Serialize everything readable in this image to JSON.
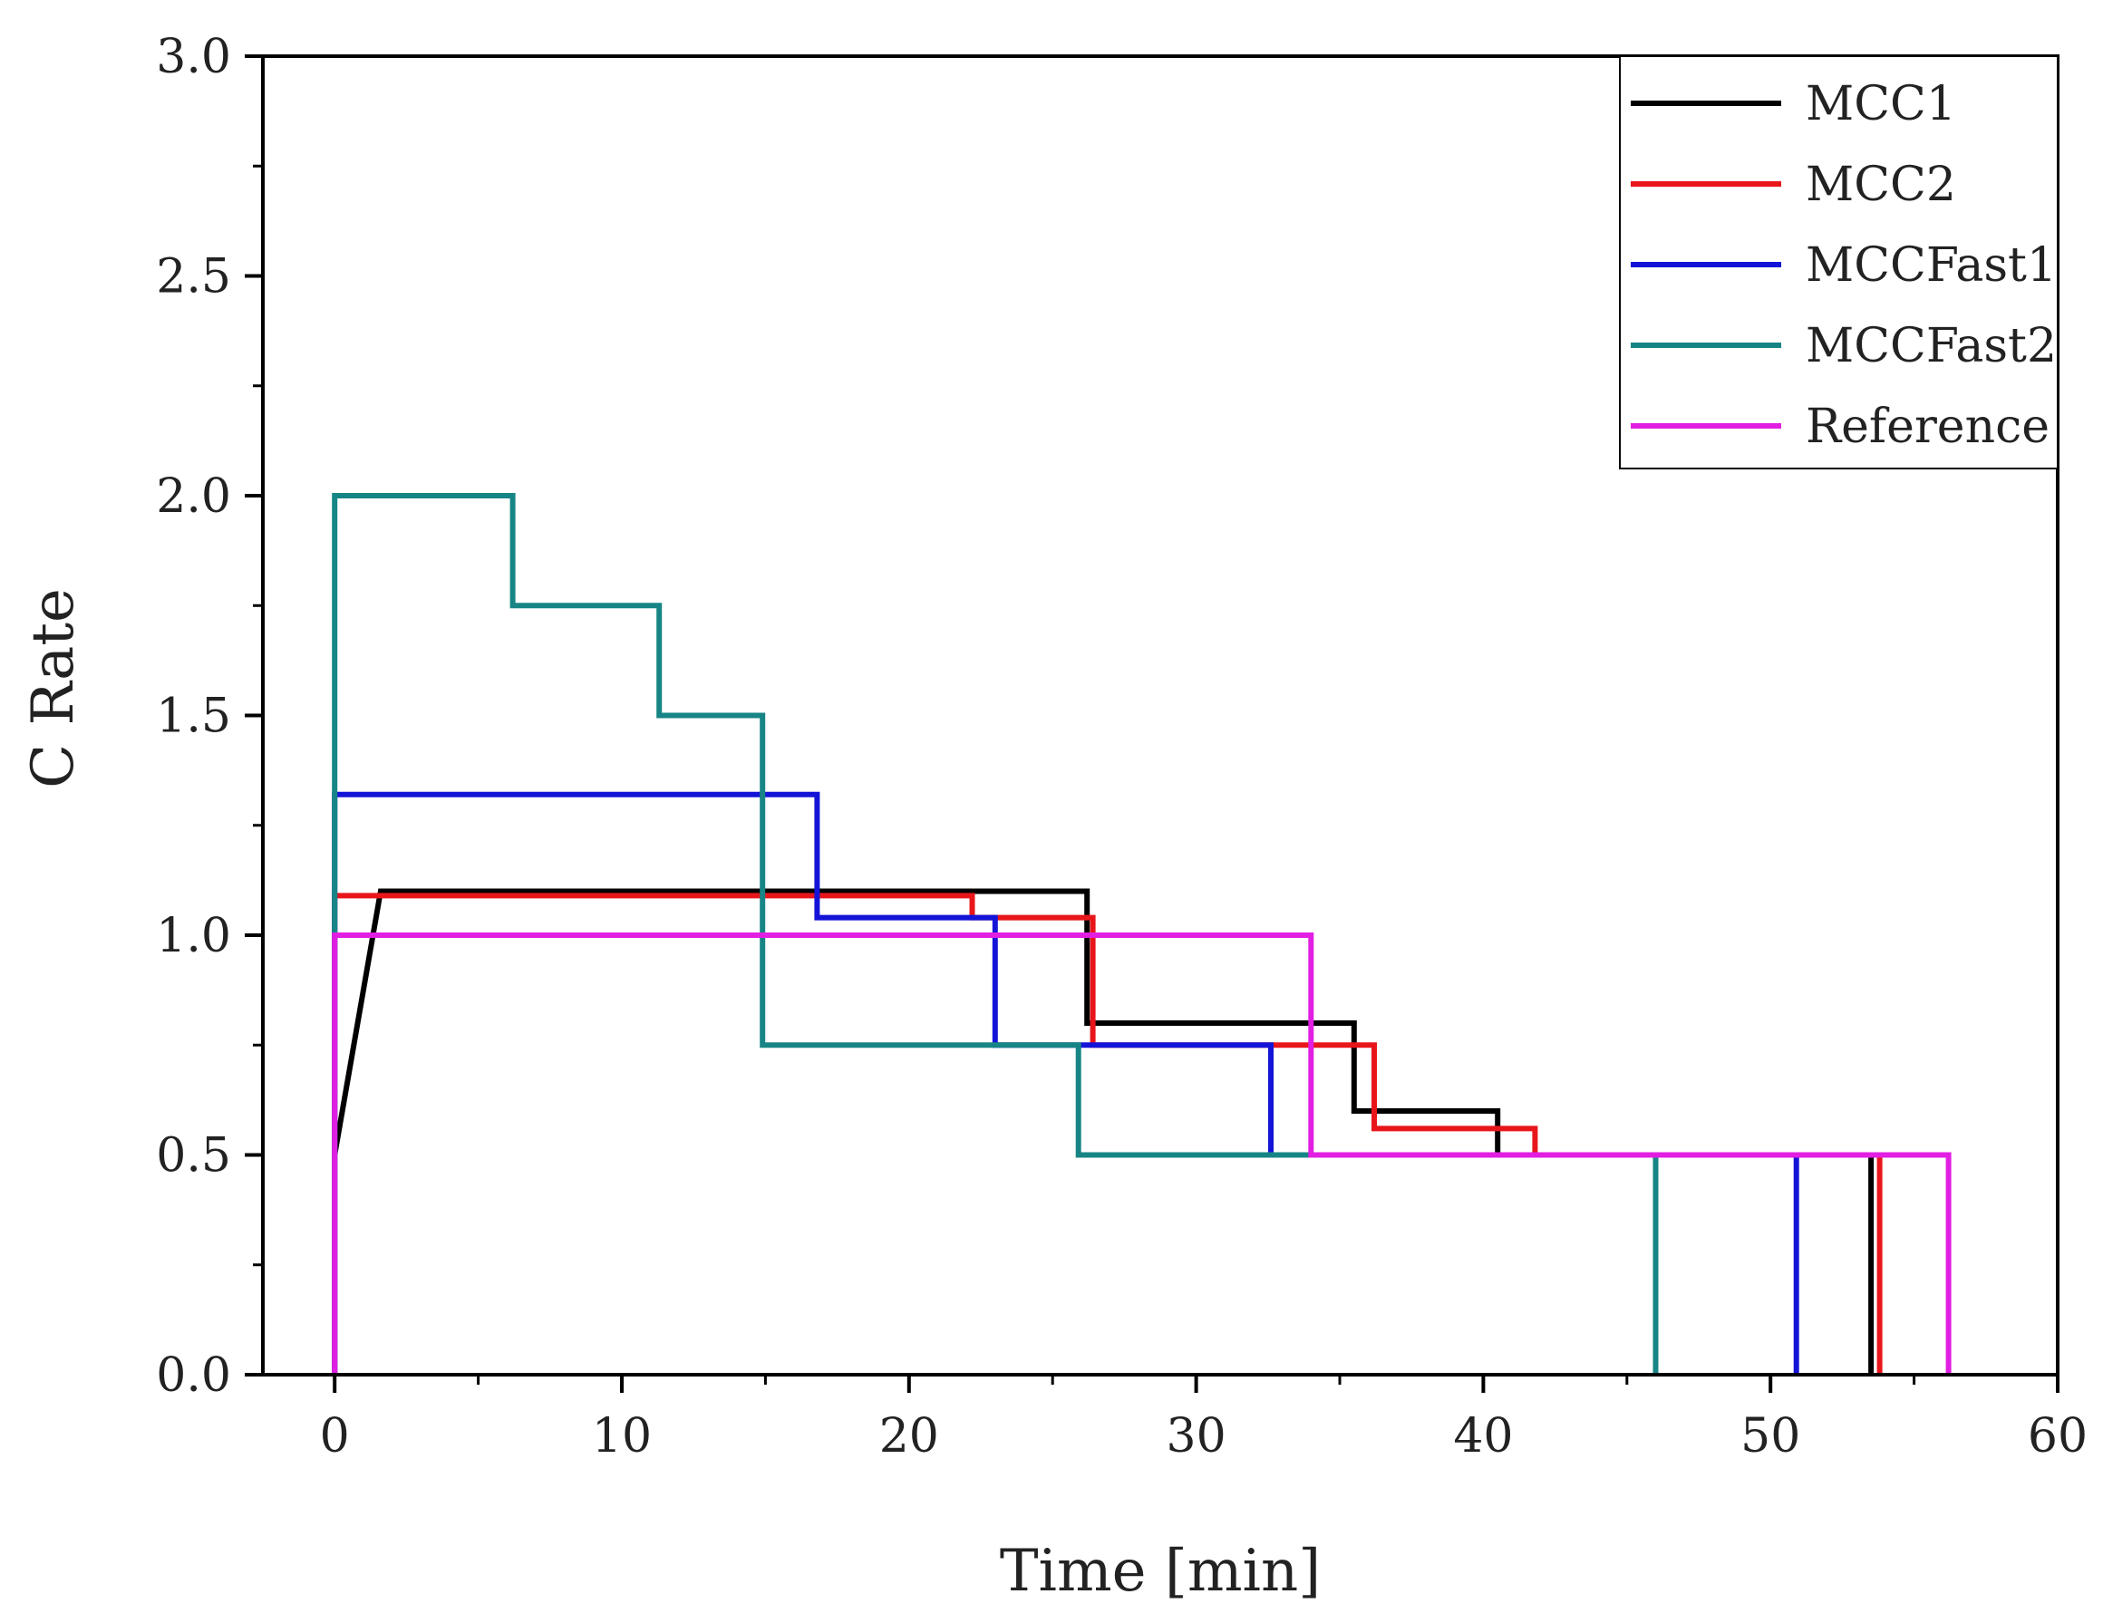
{
  "chart_data": {
    "type": "line",
    "title": "",
    "xlabel": "Time [min]",
    "ylabel": "C Rate",
    "xlim": [
      -2.5,
      60
    ],
    "ylim": [
      0,
      3.0
    ],
    "xticks": [
      "0",
      "10",
      "20",
      "30",
      "40",
      "50",
      "60"
    ],
    "yticks": [
      "0.0",
      "0.5",
      "1.0",
      "1.5",
      "2.0",
      "2.5",
      "3.0"
    ],
    "grid": false,
    "legend_position": "top-right",
    "series": [
      {
        "name": "MCC1",
        "color": "#000000",
        "x": [
          0,
          1.6,
          26.2,
          26.2,
          35.5,
          35.5,
          40.5,
          40.5,
          53.5,
          53.5
        ],
        "y": [
          0.5,
          1.1,
          1.1,
          0.8,
          0.8,
          0.6,
          0.6,
          0.5,
          0.5,
          0
        ]
      },
      {
        "name": "MCC2",
        "color": "#e8161b",
        "x": [
          0,
          0,
          22.2,
          22.2,
          26.4,
          26.4,
          36.2,
          36.2,
          41.8,
          41.8,
          53.8,
          53.8
        ],
        "y": [
          0,
          1.09,
          1.09,
          1.04,
          1.04,
          0.75,
          0.75,
          0.56,
          0.56,
          0.5,
          0.5,
          0
        ]
      },
      {
        "name": "MCCFast1",
        "color": "#1414d8",
        "x": [
          0,
          0,
          16.8,
          16.8,
          23.0,
          23.0,
          32.6,
          32.6,
          50.9,
          50.9
        ],
        "y": [
          0,
          1.32,
          1.32,
          1.04,
          1.04,
          0.75,
          0.75,
          0.5,
          0.5,
          0
        ]
      },
      {
        "name": "MCCFast2",
        "color": "#178585",
        "x": [
          0,
          0,
          6.2,
          6.2,
          11.3,
          11.3,
          14.9,
          14.9,
          25.9,
          25.9,
          46.0,
          46.0
        ],
        "y": [
          0,
          2.0,
          2.0,
          1.75,
          1.75,
          1.5,
          1.5,
          0.75,
          0.75,
          0.5,
          0.5,
          0
        ]
      },
      {
        "name": "Reference",
        "color": "#e21ee2",
        "x": [
          0,
          0,
          34.0,
          34.0,
          56.2,
          56.2
        ],
        "y": [
          0,
          1.0,
          1.0,
          0.5,
          0.5,
          0
        ]
      }
    ]
  }
}
